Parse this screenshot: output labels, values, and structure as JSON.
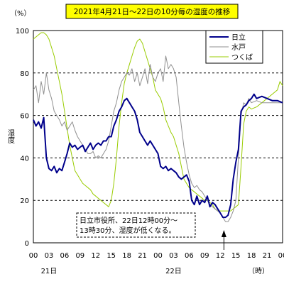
{
  "chart_data": {
    "type": "line",
    "title": "2021年4月21日～22日の10分毎の湿度の推移",
    "ylabel": "湿度",
    "yunit_label": "（%）",
    "x_unit_label": "（時）",
    "ylim": [
      0,
      100
    ],
    "yticks": [
      "0",
      "20",
      "40",
      "60",
      "80",
      "100"
    ],
    "grid_lines": [
      20,
      40,
      60,
      80
    ],
    "grid": "dashed horizontal",
    "x_range_hours": [
      0,
      48
    ],
    "xticks": [
      "00",
      "03",
      "06",
      "09",
      "12",
      "15",
      "18",
      "21",
      "00",
      "03",
      "06",
      "09",
      "12",
      "15",
      "18",
      "21",
      "00"
    ],
    "day_labels": [
      {
        "label": "21日",
        "hour": 3
      },
      {
        "label": "22日",
        "hour": 27
      }
    ],
    "legend_position": "top-right",
    "annotation": {
      "lines": [
        "日立市役所、22日12時00分～",
        "13時30分、湿度が低くなる。"
      ],
      "arrow_hour": 36.7
    },
    "series": [
      {
        "name": "日立",
        "color": "#00008b",
        "width": 2,
        "points": [
          [
            0,
            58
          ],
          [
            0.5,
            55
          ],
          [
            1,
            57
          ],
          [
            1.5,
            54
          ],
          [
            2,
            59
          ],
          [
            2.5,
            40
          ],
          [
            3,
            35
          ],
          [
            3.5,
            34
          ],
          [
            4,
            36
          ],
          [
            4.5,
            33
          ],
          [
            5,
            35
          ],
          [
            5.5,
            34
          ],
          [
            6,
            38
          ],
          [
            6.5,
            42
          ],
          [
            7,
            47
          ],
          [
            7.5,
            45
          ],
          [
            8,
            46
          ],
          [
            8.5,
            44
          ],
          [
            9,
            45
          ],
          [
            9.5,
            46
          ],
          [
            10,
            43
          ],
          [
            10.5,
            45
          ],
          [
            11,
            47
          ],
          [
            11.5,
            44
          ],
          [
            12,
            46
          ],
          [
            12.5,
            47
          ],
          [
            13,
            46
          ],
          [
            13.5,
            48
          ],
          [
            14,
            48
          ],
          [
            14.5,
            50
          ],
          [
            15,
            50
          ],
          [
            15.5,
            55
          ],
          [
            16,
            58
          ],
          [
            16.5,
            62
          ],
          [
            17,
            64
          ],
          [
            17.5,
            67
          ],
          [
            18,
            68
          ],
          [
            18.5,
            66
          ],
          [
            19,
            64
          ],
          [
            19.5,
            62
          ],
          [
            20,
            58
          ],
          [
            20.5,
            52
          ],
          [
            21,
            50
          ],
          [
            21.5,
            48
          ],
          [
            22,
            46
          ],
          [
            22.5,
            48
          ],
          [
            23,
            46
          ],
          [
            23.5,
            44
          ],
          [
            24,
            42
          ],
          [
            24.5,
            36
          ],
          [
            25,
            35
          ],
          [
            25.5,
            36
          ],
          [
            26,
            34
          ],
          [
            26.5,
            35
          ],
          [
            27,
            34
          ],
          [
            27.5,
            33
          ],
          [
            28,
            31
          ],
          [
            28.5,
            30
          ],
          [
            29,
            31
          ],
          [
            29.5,
            32
          ],
          [
            30,
            29
          ],
          [
            30.5,
            20
          ],
          [
            31,
            18
          ],
          [
            31.5,
            22
          ],
          [
            32,
            18
          ],
          [
            32.5,
            20
          ],
          [
            33,
            19
          ],
          [
            33.5,
            22
          ],
          [
            34,
            17
          ],
          [
            34.5,
            19
          ],
          [
            35,
            18
          ],
          [
            35.5,
            16
          ],
          [
            36,
            14
          ],
          [
            36.5,
            12
          ],
          [
            37,
            12
          ],
          [
            37.5,
            13
          ],
          [
            38,
            18
          ],
          [
            38.5,
            30
          ],
          [
            39,
            38
          ],
          [
            39.5,
            44
          ],
          [
            40,
            62
          ],
          [
            40.5,
            64
          ],
          [
            41,
            65
          ],
          [
            41.5,
            67
          ],
          [
            42,
            68
          ],
          [
            42.5,
            70
          ],
          [
            43,
            68
          ],
          [
            44,
            69
          ],
          [
            45,
            68
          ],
          [
            46,
            67
          ],
          [
            47,
            67
          ],
          [
            48,
            66
          ]
        ]
      },
      {
        "name": "水戸",
        "color": "#909090",
        "width": 1,
        "points": [
          [
            0,
            72
          ],
          [
            0.5,
            74
          ],
          [
            1,
            66
          ],
          [
            1.5,
            76
          ],
          [
            2,
            70
          ],
          [
            2.5,
            80
          ],
          [
            3,
            72
          ],
          [
            3.5,
            68
          ],
          [
            4,
            62
          ],
          [
            4.5,
            60
          ],
          [
            5,
            58
          ],
          [
            5.5,
            55
          ],
          [
            6,
            57
          ],
          [
            6.5,
            53
          ],
          [
            7,
            55
          ],
          [
            7.5,
            57
          ],
          [
            8,
            53
          ],
          [
            8.5,
            50
          ],
          [
            9,
            48
          ],
          [
            9.5,
            46
          ],
          [
            10,
            44
          ],
          [
            10.5,
            42
          ],
          [
            11,
            42
          ],
          [
            11.5,
            43
          ],
          [
            12,
            40
          ],
          [
            12.5,
            41
          ],
          [
            13,
            40
          ],
          [
            13.5,
            42
          ],
          [
            14,
            44
          ],
          [
            14.5,
            48
          ],
          [
            15,
            55
          ],
          [
            15.5,
            62
          ],
          [
            16,
            66
          ],
          [
            16.5,
            72
          ],
          [
            17,
            76
          ],
          [
            17.5,
            78
          ],
          [
            18,
            80
          ],
          [
            18.5,
            79
          ],
          [
            19,
            82
          ],
          [
            19.5,
            76
          ],
          [
            20,
            80
          ],
          [
            20.5,
            74
          ],
          [
            21,
            78
          ],
          [
            21.5,
            82
          ],
          [
            22,
            75
          ],
          [
            22.5,
            84
          ],
          [
            23,
            78
          ],
          [
            23.5,
            76
          ],
          [
            24,
            80
          ],
          [
            24.5,
            82
          ],
          [
            25,
            76
          ],
          [
            25.5,
            88
          ],
          [
            26,
            82
          ],
          [
            26.5,
            84
          ],
          [
            27,
            82
          ],
          [
            27.5,
            78
          ],
          [
            28,
            66
          ],
          [
            28.5,
            55
          ],
          [
            29,
            45
          ],
          [
            29.5,
            38
          ],
          [
            30,
            32
          ],
          [
            30.5,
            28
          ],
          [
            31,
            26
          ],
          [
            31.5,
            27
          ],
          [
            32,
            25
          ],
          [
            32.5,
            24
          ],
          [
            33,
            22
          ],
          [
            33.5,
            20
          ],
          [
            34,
            18
          ],
          [
            34.5,
            17
          ],
          [
            35,
            16
          ],
          [
            35.5,
            15
          ],
          [
            36,
            14
          ],
          [
            36.5,
            12
          ],
          [
            37,
            10
          ],
          [
            37.5,
            10
          ],
          [
            38,
            12
          ],
          [
            38.5,
            15
          ],
          [
            39,
            20
          ],
          [
            39.5,
            40
          ],
          [
            40,
            60
          ],
          [
            40.5,
            66
          ],
          [
            41,
            65
          ],
          [
            41.5,
            68
          ],
          [
            42,
            66
          ],
          [
            43,
            67
          ],
          [
            44,
            66
          ],
          [
            45,
            66
          ],
          [
            46,
            66
          ],
          [
            47,
            66
          ],
          [
            48,
            66
          ]
        ]
      },
      {
        "name": "つくば",
        "color": "#99cc00",
        "width": 1,
        "points": [
          [
            0,
            96
          ],
          [
            0.5,
            97
          ],
          [
            1,
            98
          ],
          [
            1.5,
            99
          ],
          [
            2,
            99
          ],
          [
            2.5,
            98
          ],
          [
            3,
            96
          ],
          [
            3.5,
            92
          ],
          [
            4,
            88
          ],
          [
            4.5,
            82
          ],
          [
            5,
            76
          ],
          [
            5.5,
            70
          ],
          [
            6,
            62
          ],
          [
            6.5,
            54
          ],
          [
            7,
            46
          ],
          [
            7.5,
            40
          ],
          [
            8,
            34
          ],
          [
            8.5,
            32
          ],
          [
            9,
            30
          ],
          [
            9.5,
            28
          ],
          [
            10,
            27
          ],
          [
            10.5,
            26
          ],
          [
            11,
            25
          ],
          [
            11.5,
            23
          ],
          [
            12,
            22
          ],
          [
            12.5,
            21
          ],
          [
            13,
            20
          ],
          [
            13.5,
            19
          ],
          [
            14,
            18
          ],
          [
            14.5,
            17
          ],
          [
            15,
            20
          ],
          [
            15.5,
            28
          ],
          [
            16,
            40
          ],
          [
            16.5,
            55
          ],
          [
            17,
            66
          ],
          [
            17.5,
            75
          ],
          [
            18,
            80
          ],
          [
            18.5,
            84
          ],
          [
            19,
            88
          ],
          [
            19.5,
            92
          ],
          [
            20,
            95
          ],
          [
            20.5,
            96
          ],
          [
            21,
            94
          ],
          [
            21.5,
            90
          ],
          [
            22,
            86
          ],
          [
            22.5,
            82
          ],
          [
            23,
            78
          ],
          [
            23.5,
            72
          ],
          [
            24,
            70
          ],
          [
            24.5,
            68
          ],
          [
            25,
            64
          ],
          [
            25.5,
            58
          ],
          [
            26,
            55
          ],
          [
            26.5,
            52
          ],
          [
            27,
            50
          ],
          [
            27.5,
            46
          ],
          [
            28,
            42
          ],
          [
            28.5,
            36
          ],
          [
            29,
            30
          ],
          [
            29.5,
            28
          ],
          [
            30,
            26
          ],
          [
            30.5,
            25
          ],
          [
            31,
            24
          ],
          [
            31.5,
            23
          ],
          [
            32,
            22
          ],
          [
            32.5,
            21
          ],
          [
            33,
            20
          ],
          [
            33.5,
            20
          ],
          [
            34,
            19
          ],
          [
            34.5,
            18
          ],
          [
            35,
            16
          ],
          [
            35.5,
            15
          ],
          [
            36,
            15
          ],
          [
            36.5,
            15
          ],
          [
            37,
            15
          ],
          [
            37.5,
            15
          ],
          [
            38,
            15
          ],
          [
            38.5,
            16
          ],
          [
            39,
            17
          ],
          [
            39.5,
            18
          ],
          [
            40,
            36
          ],
          [
            40.5,
            56
          ],
          [
            41,
            62
          ],
          [
            41.5,
            64
          ],
          [
            42,
            63
          ],
          [
            43,
            64
          ],
          [
            44,
            66
          ],
          [
            45,
            68
          ],
          [
            46,
            70
          ],
          [
            47,
            72
          ],
          [
            47.5,
            76
          ],
          [
            48,
            74
          ]
        ]
      }
    ]
  }
}
